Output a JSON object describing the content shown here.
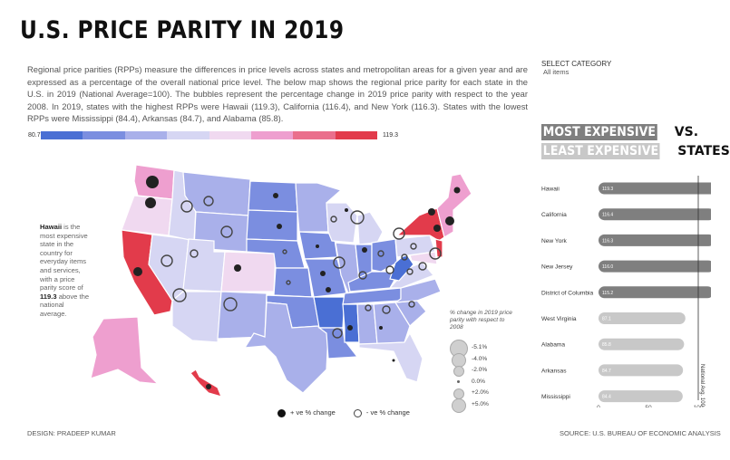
{
  "title": "U.S. PRICE PARITY IN 2019",
  "intro": {
    "p1": "Regional price parities (RPPs) measure the differences in price levels across states and metropolitan areas for a given year and are expressed as a percentage of the overall national price level. The below map shows the regional price parity for each state in the U.S. in 2019 (National Average=100). The bubbles represent the percentage change in 2019 price parity with respect to the year 2008. In 2019, states with the highest RPPs were Hawaii (119.3), California (116.4), and New York (116.3). States with the lowest RPPs were Mississippi (84.4), Arkansas (84.7), and Alabama (85.8)."
  },
  "filter": {
    "label": "SELECT CATEGORY",
    "value": "All items"
  },
  "color_legend": {
    "min_label": "80.7",
    "max_label": "119.3",
    "colors": [
      "#4a6fd4",
      "#7b8ee0",
      "#a9b0ea",
      "#d6d6f3",
      "#f0d9f0",
      "#ee9fcf",
      "#ea6f8c",
      "#e23b4b"
    ]
  },
  "hawaii_note": {
    "state": "Hawaii",
    "text_a": " is the most expensive state in the country for everyday items and services, with a price parity score of ",
    "score": "119.3",
    "text_b": " above the national average."
  },
  "bubble_legend": {
    "title": "% change in 2019 price parity with respect to 2008",
    "items": [
      "-5.1%",
      "-4.0%",
      "-2.0%",
      "0.0%",
      "+2.0%",
      "+5.0%"
    ]
  },
  "dot_legend": {
    "positive": "+ ve % change",
    "negative": "- ve % change"
  },
  "ranking": {
    "most_tag": "MOST EXPENSIVE",
    "most_suffix": " VS.",
    "least_tag": "LEAST EXPENSIVE",
    "least_suffix": " STATES",
    "avg_label": "National Avg. 100",
    "axis_ticks": [
      "0",
      "50",
      "100"
    ],
    "most": [
      {
        "state": "Hawaii",
        "value": 119.3,
        "label": "119.3"
      },
      {
        "state": "California",
        "value": 116.4,
        "label": "116.4"
      },
      {
        "state": "New York",
        "value": 116.3,
        "label": "116.3"
      },
      {
        "state": "New Jersey",
        "value": 116.0,
        "label": "116.0"
      },
      {
        "state": "District of Columbia",
        "value": 115.2,
        "label": "115.2"
      }
    ],
    "least": [
      {
        "state": "West Virginia",
        "value": 87.1,
        "label": "87.1"
      },
      {
        "state": "Alabama",
        "value": 85.8,
        "label": "85.8"
      },
      {
        "state": "Arkansas",
        "value": 84.7,
        "label": "84.7"
      },
      {
        "state": "Mississippi",
        "value": 84.4,
        "label": "84.4"
      }
    ],
    "dark_color": "#7f7f7f",
    "light_color": "#c8c8c8"
  },
  "footer": {
    "design": "DESIGN: PRADEEP KUMAR",
    "source": "SOURCE: U.S. BUREAU OF ECONOMIC ANALYSIS"
  }
}
